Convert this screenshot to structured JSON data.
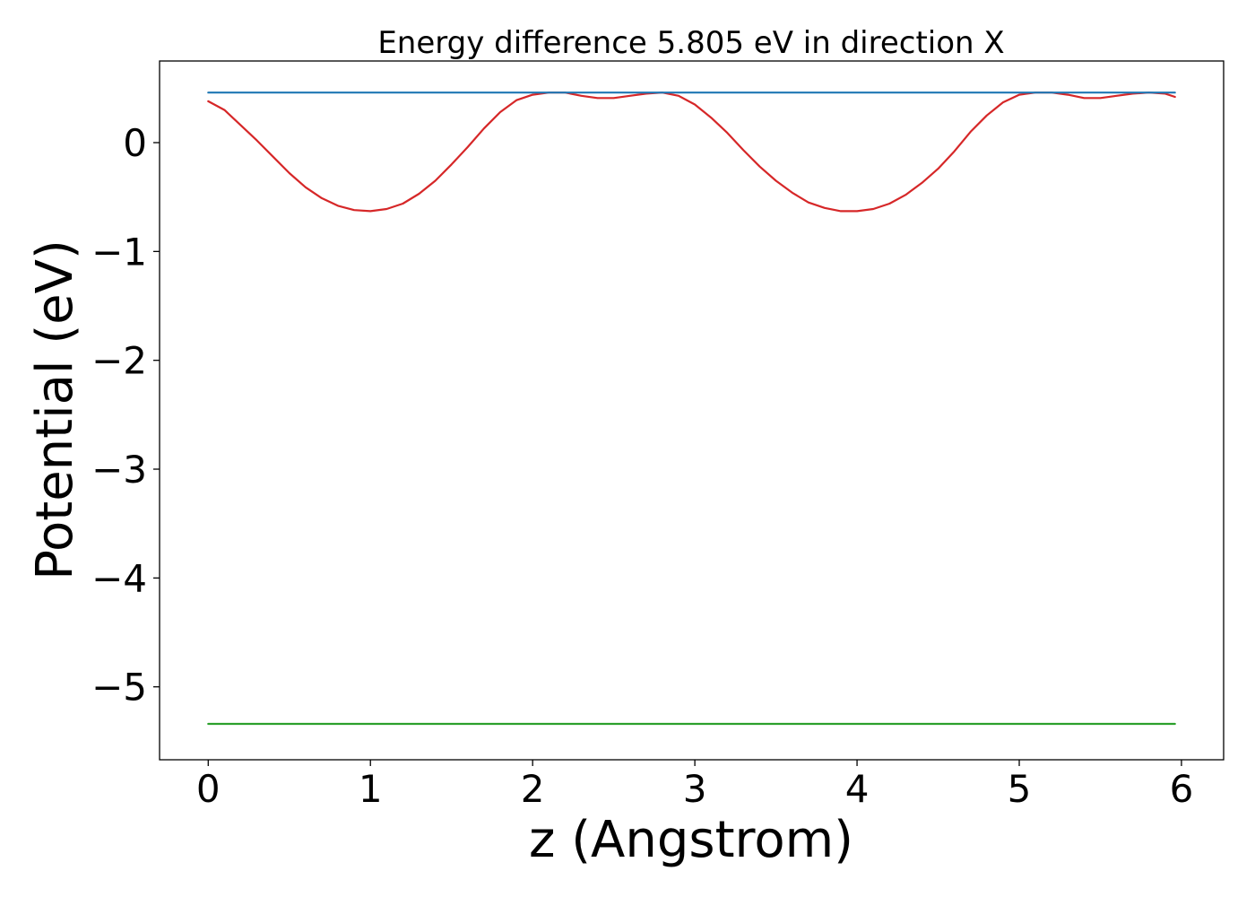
{
  "chart_data": {
    "type": "line",
    "title": "Energy difference 5.805 eV in direction X",
    "xlabel": "z (Angstrom)",
    "ylabel": "Potential (eV)",
    "xlim": [
      -0.3,
      6.26
    ],
    "ylim": [
      -5.67,
      0.75
    ],
    "xticks": [
      0,
      1,
      2,
      3,
      4,
      5,
      6
    ],
    "xtick_labels": [
      "0",
      "1",
      "2",
      "3",
      "4",
      "5",
      "6"
    ],
    "yticks": [
      0,
      -1,
      -2,
      -3,
      -4,
      -5
    ],
    "ytick_labels": [
      "0",
      "−1",
      "−2",
      "−3",
      "−4",
      "−5"
    ],
    "grid": false,
    "series": [
      {
        "color": "#d62728",
        "x": [
          0.0,
          0.1,
          0.2,
          0.3,
          0.4,
          0.5,
          0.6,
          0.7,
          0.8,
          0.9,
          1.0,
          1.1,
          1.2,
          1.3,
          1.4,
          1.5,
          1.6,
          1.7,
          1.8,
          1.9,
          2.0,
          2.1,
          2.2,
          2.3,
          2.4,
          2.5,
          2.6,
          2.7,
          2.8,
          2.9,
          3.0,
          3.1,
          3.2,
          3.3,
          3.4,
          3.5,
          3.6,
          3.7,
          3.8,
          3.9,
          4.0,
          4.1,
          4.2,
          4.3,
          4.4,
          4.5,
          4.6,
          4.7,
          4.8,
          4.9,
          5.0,
          5.1,
          5.2,
          5.3,
          5.4,
          5.5,
          5.6,
          5.7,
          5.8,
          5.9,
          5.96
        ],
        "y": [
          0.38,
          0.3,
          0.16,
          0.02,
          -0.13,
          -0.28,
          -0.41,
          -0.51,
          -0.58,
          -0.62,
          -0.63,
          -0.61,
          -0.56,
          -0.47,
          -0.35,
          -0.2,
          -0.04,
          0.13,
          0.28,
          0.39,
          0.44,
          0.46,
          0.46,
          0.43,
          0.41,
          0.41,
          0.43,
          0.45,
          0.46,
          0.43,
          0.35,
          0.23,
          0.09,
          -0.07,
          -0.22,
          -0.35,
          -0.46,
          -0.55,
          -0.6,
          -0.63,
          -0.63,
          -0.61,
          -0.56,
          -0.48,
          -0.37,
          -0.24,
          -0.08,
          0.1,
          0.25,
          0.37,
          0.44,
          0.46,
          0.46,
          0.44,
          0.41,
          0.41,
          0.43,
          0.45,
          0.46,
          0.45,
          0.42
        ]
      },
      {
        "color": "#1f77b4",
        "x": [
          0.0,
          5.96
        ],
        "y": [
          0.46,
          0.46
        ]
      },
      {
        "color": "#2ca02c",
        "x": [
          0.0,
          5.96
        ],
        "y": [
          -5.34,
          -5.34
        ]
      }
    ]
  }
}
